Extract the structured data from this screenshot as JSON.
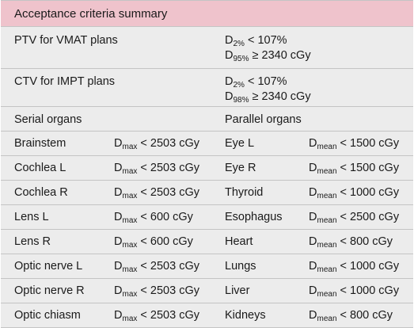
{
  "header": "Acceptance criteria summary",
  "ptv": {
    "label": "PTV for VMAT plans",
    "line1": {
      "sym": "D",
      "sub": "2%",
      "rest": " < 107%"
    },
    "line2": {
      "sym": "D",
      "sub": "95%",
      "rest": " ≥ 2340 cGy"
    }
  },
  "ctv": {
    "label": "CTV for IMPT plans",
    "line1": {
      "sym": "D",
      "sub": "2%",
      "rest": " < 107%"
    },
    "line2": {
      "sym": "D",
      "sub": "98%",
      "rest": " ≥ 2340 cGy"
    }
  },
  "groups": {
    "serial": "Serial organs",
    "parallel": "Parallel organs"
  },
  "organs": [
    {
      "s": "Brainstem",
      "ss": "max",
      "sv": " < 2503 cGy",
      "p": "Eye L",
      "ps": "mean",
      "pv": " < 1500 cGy"
    },
    {
      "s": "Cochlea L",
      "ss": "max",
      "sv": " < 2503 cGy",
      "p": "Eye R",
      "ps": "mean",
      "pv": " < 1500 cGy"
    },
    {
      "s": "Cochlea R",
      "ss": "max",
      "sv": " < 2503 cGy",
      "p": "Thyroid",
      "ps": "mean",
      "pv": " < 1000 cGy"
    },
    {
      "s": "Lens L",
      "ss": "max",
      "sv": " < 600 cGy",
      "p": "Esophagus",
      "ps": "mean",
      "pv": " < 2500 cGy"
    },
    {
      "s": "Lens R",
      "ss": "max",
      "sv": " < 600 cGy",
      "p": "Heart",
      "ps": "mean",
      "pv": " < 800 cGy"
    },
    {
      "s": "Optic nerve L",
      "ss": "max",
      "sv": " < 2503 cGy",
      "p": "Lungs",
      "ps": "mean",
      "pv": " < 1000 cGy"
    },
    {
      "s": "Optic nerve R",
      "ss": "max",
      "sv": " < 2503 cGy",
      "p": "Liver",
      "ps": "mean",
      "pv": " < 1000 cGy"
    },
    {
      "s": "Optic chiasm",
      "ss": "max",
      "sv": " < 2503 cGy",
      "p": "Kidneys",
      "ps": "mean",
      "pv": " < 800 cGy"
    }
  ]
}
